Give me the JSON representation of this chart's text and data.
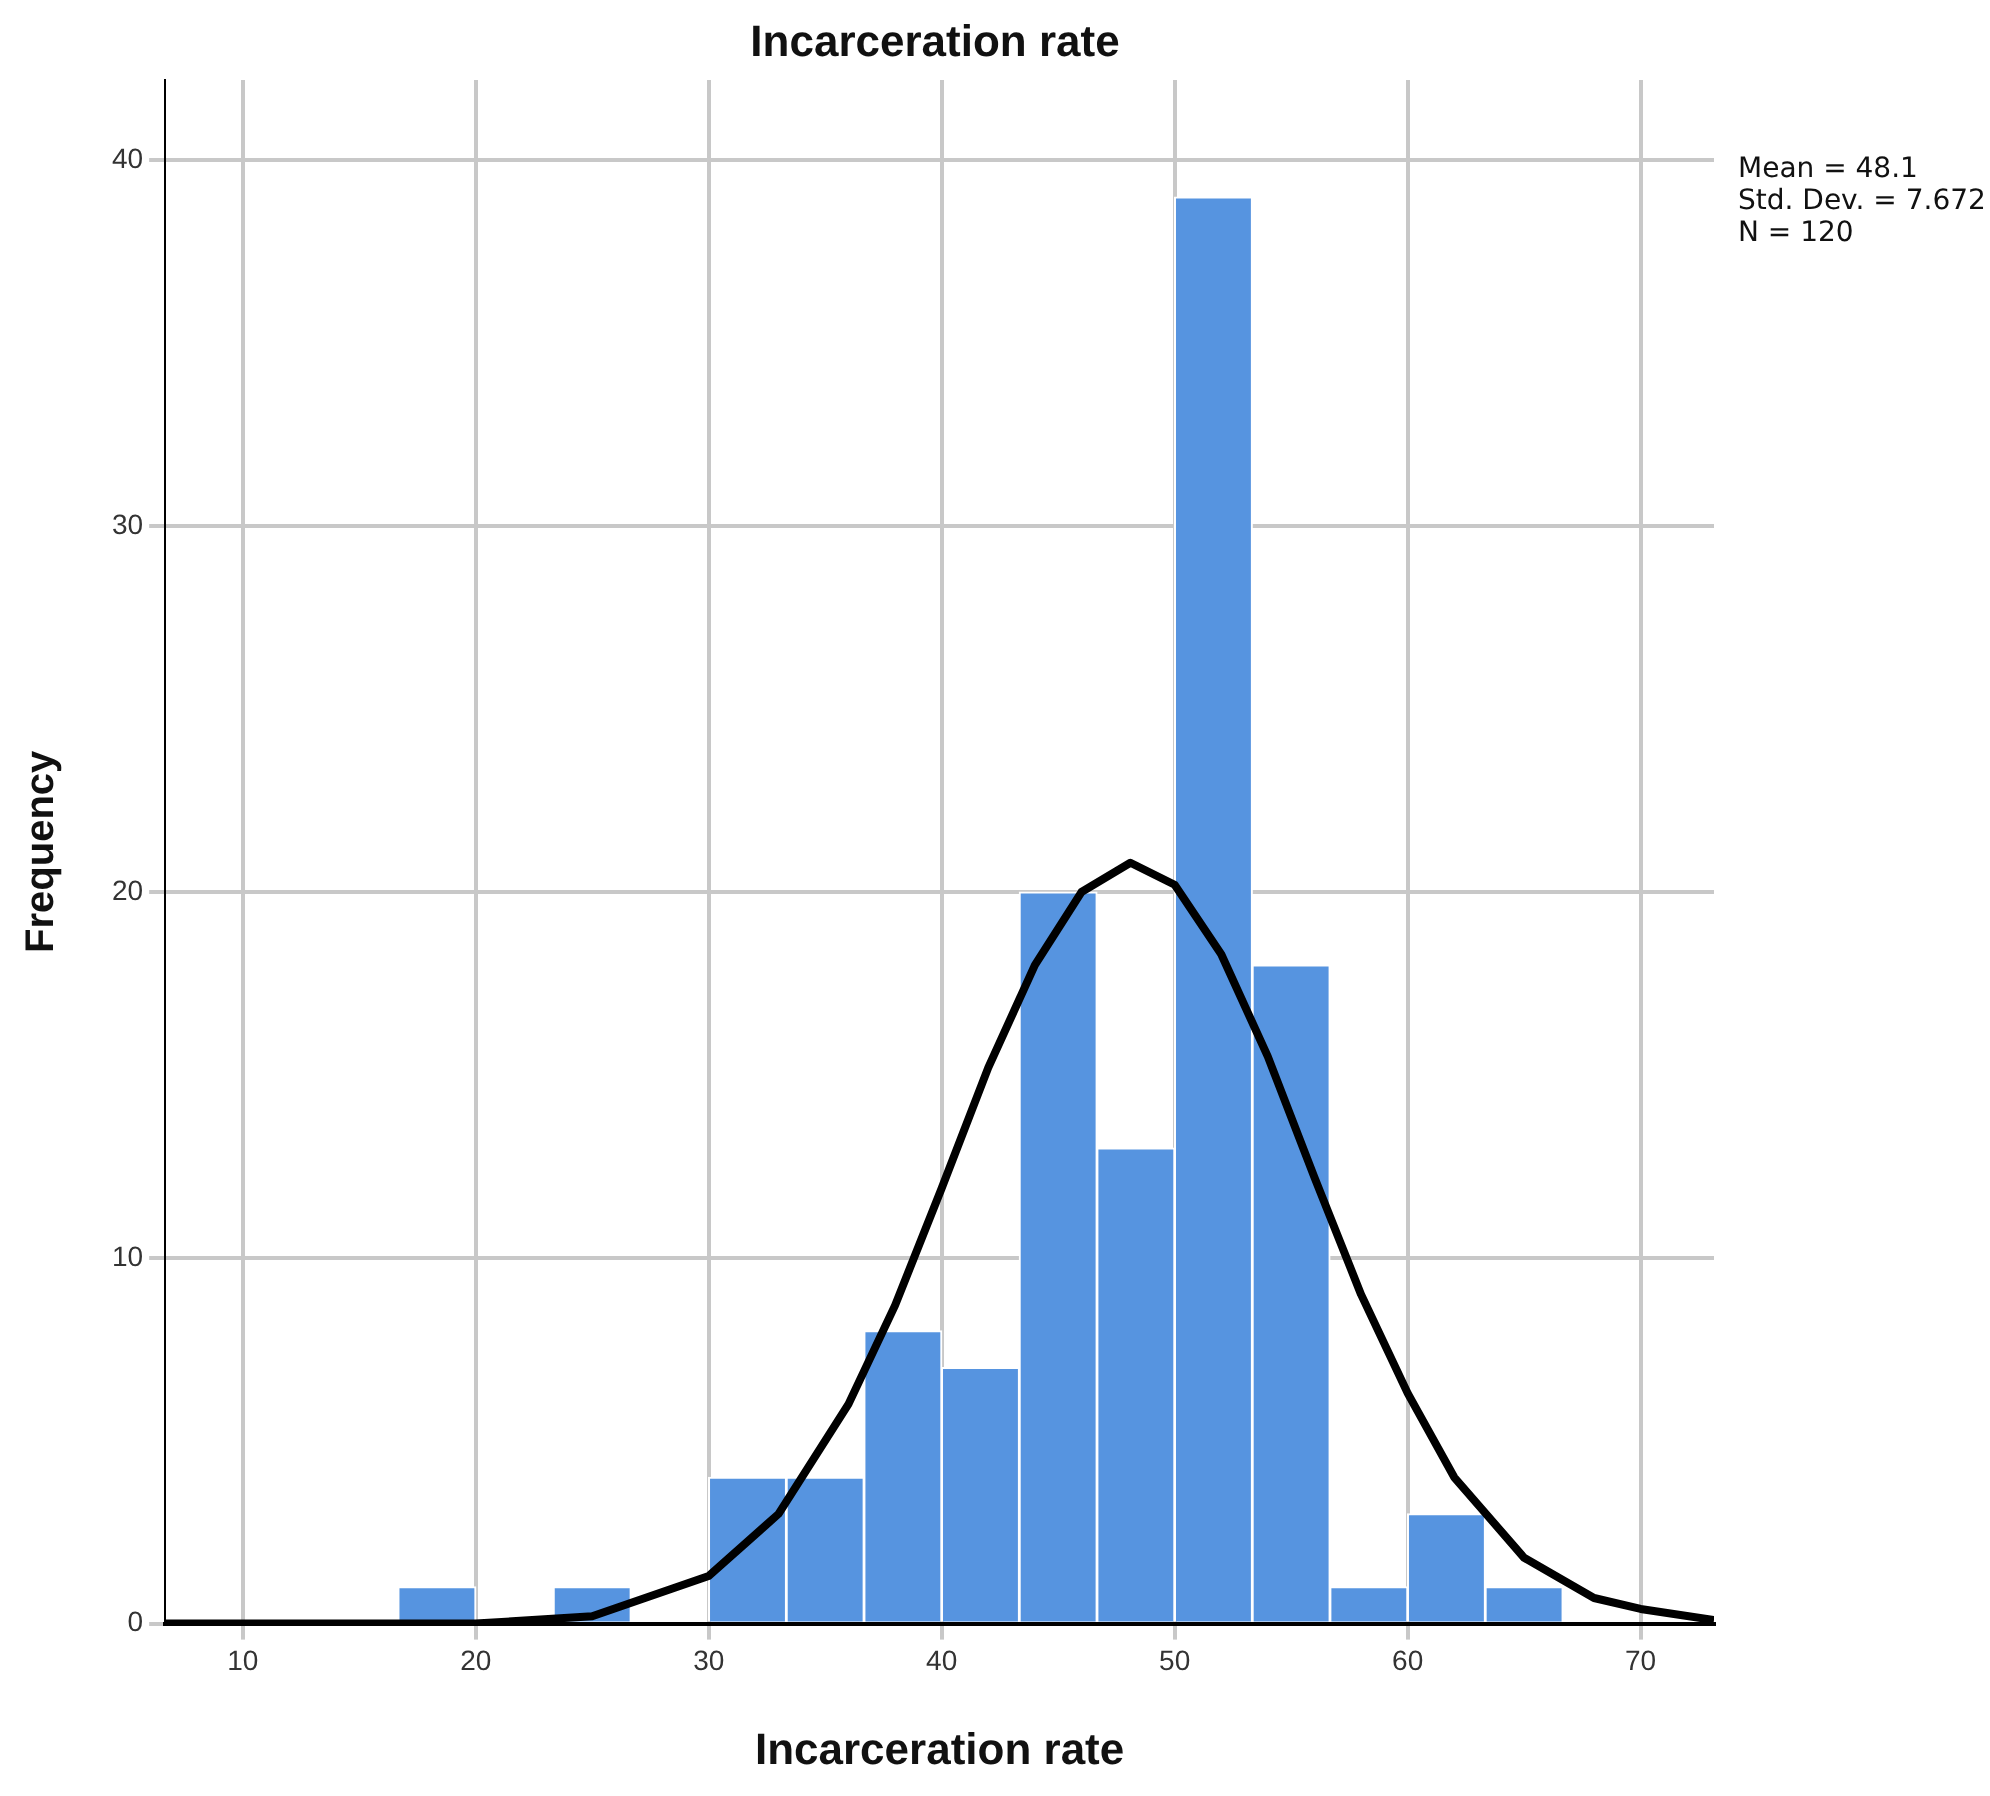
{
  "chart_data": {
    "type": "histogram",
    "title": "Incarceration rate",
    "xlabel": "Incarceration rate",
    "ylabel": "Frequency",
    "bins": [
      16.67,
      20,
      23.33,
      26.67,
      30,
      33.33,
      36.67,
      40,
      43.33,
      46.67,
      50,
      53.33,
      56.67,
      60,
      63.33,
      66.67
    ],
    "values": [
      1,
      0,
      1,
      0,
      4,
      4,
      8,
      7,
      20,
      13,
      39,
      18,
      1,
      3,
      1
    ],
    "color": "#5694e0",
    "series": [
      {
        "type": "line",
        "color": "#000000",
        "x": [
          6.67,
          10,
          15,
          20,
          25,
          30,
          33,
          36,
          38,
          40,
          42,
          44,
          46,
          48.1,
          50,
          52,
          54,
          56,
          58,
          60,
          62,
          65,
          68,
          70,
          73.15
        ],
        "values": [
          0,
          0,
          0,
          0,
          0.2,
          1.3,
          3,
          6,
          8.7,
          11.9,
          15.2,
          18,
          20,
          20.8,
          20.2,
          18.3,
          15.5,
          12.2,
          9,
          6.3,
          4,
          1.8,
          0.7,
          0.4,
          0.1
        ]
      }
    ],
    "xlim": [
      6.67,
      73.15
    ],
    "xticks": [
      10,
      20,
      30,
      40,
      50,
      60,
      70
    ],
    "ylim": [
      0,
      42.2
    ],
    "yticks": [
      0,
      10,
      20,
      30,
      40
    ],
    "grid": true,
    "legend": false,
    "marker": "none",
    "annotations": [
      "Mean = 48.1",
      "Std. Dev. = 7.672",
      "N = 120"
    ]
  }
}
